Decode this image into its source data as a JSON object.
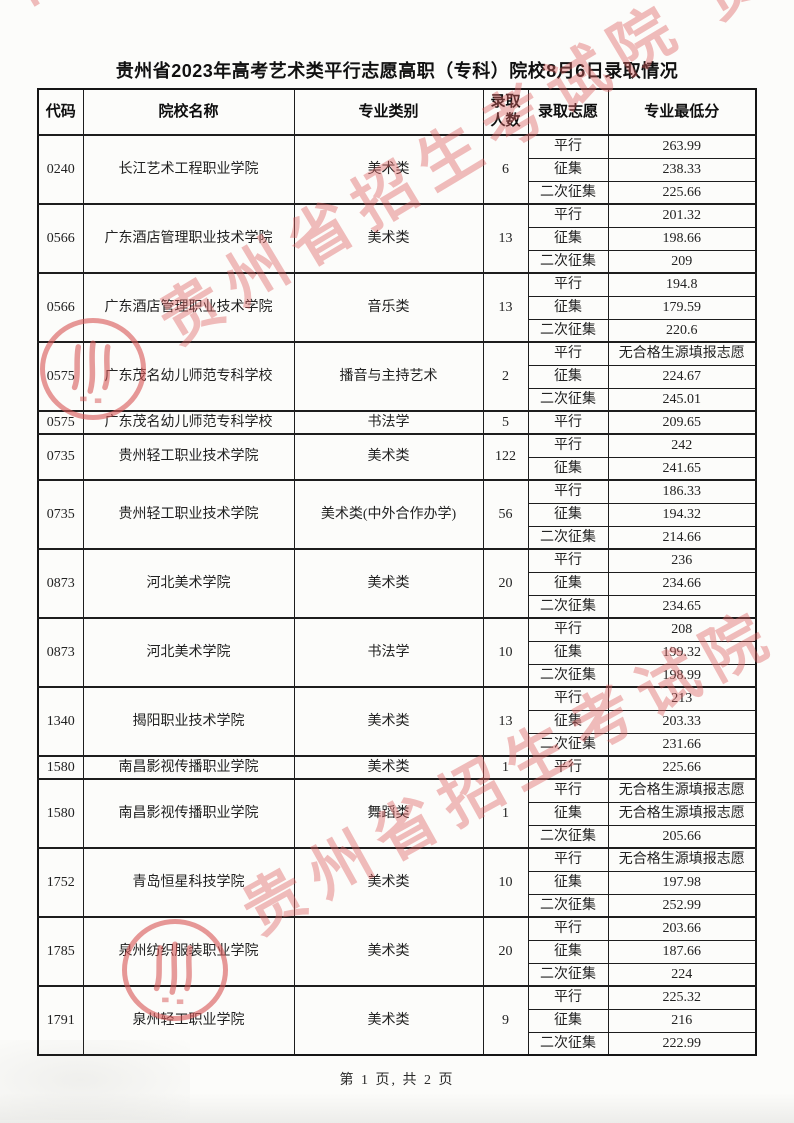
{
  "page": {
    "title": "贵州省2023年高考艺术类平行志愿高职（专科）院校8月6日录取情况",
    "footer": "第 1 页, 共 2 页"
  },
  "watermark": {
    "text": "贵州省招生考试院",
    "upper_line": "贵州省招生考试院 贵州省招",
    "lower_line": "贵州省招生考试院",
    "corner_fragment": "院",
    "color": "#dd6161"
  },
  "table": {
    "headers": {
      "code": "代码",
      "school": "院校名称",
      "category": "专业类别",
      "count": "录取人数",
      "batch": "录取志愿",
      "min_score": "专业最低分"
    },
    "no_qualified_text": "无合格生源填报志愿",
    "groups": [
      {
        "code": "0240",
        "school": "长江艺术工程职业学院",
        "category": "美术类",
        "count": "6",
        "rows": [
          {
            "batch": "平行",
            "score": "263.99"
          },
          {
            "batch": "征集",
            "score": "238.33"
          },
          {
            "batch": "二次征集",
            "score": "225.66"
          }
        ]
      },
      {
        "code": "0566",
        "school": "广东酒店管理职业技术学院",
        "category": "美术类",
        "count": "13",
        "rows": [
          {
            "batch": "平行",
            "score": "201.32"
          },
          {
            "batch": "征集",
            "score": "198.66"
          },
          {
            "batch": "二次征集",
            "score": "209"
          }
        ]
      },
      {
        "code": "0566",
        "school": "广东酒店管理职业技术学院",
        "category": "音乐类",
        "count": "13",
        "rows": [
          {
            "batch": "平行",
            "score": "194.8"
          },
          {
            "batch": "征集",
            "score": "179.59"
          },
          {
            "batch": "二次征集",
            "score": "220.6"
          }
        ]
      },
      {
        "code": "0575",
        "school": "广东茂名幼儿师范专科学校",
        "category": "播音与主持艺术",
        "count": "2",
        "rows": [
          {
            "batch": "平行",
            "score": "无合格生源填报志愿"
          },
          {
            "batch": "征集",
            "score": "224.67"
          },
          {
            "batch": "二次征集",
            "score": "245.01"
          }
        ]
      },
      {
        "code": "0575",
        "school": "广东茂名幼儿师范专科学校",
        "category": "书法学",
        "count": "5",
        "rows": [
          {
            "batch": "平行",
            "score": "209.65"
          }
        ]
      },
      {
        "code": "0735",
        "school": "贵州轻工职业技术学院",
        "category": "美术类",
        "count": "122",
        "rows": [
          {
            "batch": "平行",
            "score": "242"
          },
          {
            "batch": "征集",
            "score": "241.65"
          }
        ]
      },
      {
        "code": "0735",
        "school": "贵州轻工职业技术学院",
        "category": "美术类(中外合作办学)",
        "count": "56",
        "rows": [
          {
            "batch": "平行",
            "score": "186.33"
          },
          {
            "batch": "征集",
            "score": "194.32"
          },
          {
            "batch": "二次征集",
            "score": "214.66"
          }
        ]
      },
      {
        "code": "0873",
        "school": "河北美术学院",
        "category": "美术类",
        "count": "20",
        "rows": [
          {
            "batch": "平行",
            "score": "236"
          },
          {
            "batch": "征集",
            "score": "234.66"
          },
          {
            "batch": "二次征集",
            "score": "234.65"
          }
        ]
      },
      {
        "code": "0873",
        "school": "河北美术学院",
        "category": "书法学",
        "count": "10",
        "rows": [
          {
            "batch": "平行",
            "score": "208"
          },
          {
            "batch": "征集",
            "score": "199.32"
          },
          {
            "batch": "二次征集",
            "score": "198.99"
          }
        ]
      },
      {
        "code": "1340",
        "school": "揭阳职业技术学院",
        "category": "美术类",
        "count": "13",
        "rows": [
          {
            "batch": "平行",
            "score": "213"
          },
          {
            "batch": "征集",
            "score": "203.33"
          },
          {
            "batch": "二次征集",
            "score": "231.66"
          }
        ]
      },
      {
        "code": "1580",
        "school": "南昌影视传播职业学院",
        "category": "美术类",
        "count": "1",
        "rows": [
          {
            "batch": "平行",
            "score": "225.66"
          }
        ]
      },
      {
        "code": "1580",
        "school": "南昌影视传播职业学院",
        "category": "舞蹈类",
        "count": "1",
        "rows": [
          {
            "batch": "平行",
            "score": "无合格生源填报志愿"
          },
          {
            "batch": "征集",
            "score": "无合格生源填报志愿"
          },
          {
            "batch": "二次征集",
            "score": "205.66"
          }
        ]
      },
      {
        "code": "1752",
        "school": "青岛恒星科技学院",
        "category": "美术类",
        "count": "10",
        "rows": [
          {
            "batch": "平行",
            "score": "无合格生源填报志愿"
          },
          {
            "batch": "征集",
            "score": "197.98"
          },
          {
            "batch": "二次征集",
            "score": "252.99"
          }
        ]
      },
      {
        "code": "1785",
        "school": "泉州纺织服装职业学院",
        "category": "美术类",
        "count": "20",
        "rows": [
          {
            "batch": "平行",
            "score": "203.66"
          },
          {
            "batch": "征集",
            "score": "187.66"
          },
          {
            "batch": "二次征集",
            "score": "224"
          }
        ]
      },
      {
        "code": "1791",
        "school": "泉州轻工职业学院",
        "category": "美术类",
        "count": "9",
        "rows": [
          {
            "batch": "平行",
            "score": "225.32"
          },
          {
            "batch": "征集",
            "score": "216"
          },
          {
            "batch": "二次征集",
            "score": "222.99"
          }
        ]
      }
    ]
  }
}
